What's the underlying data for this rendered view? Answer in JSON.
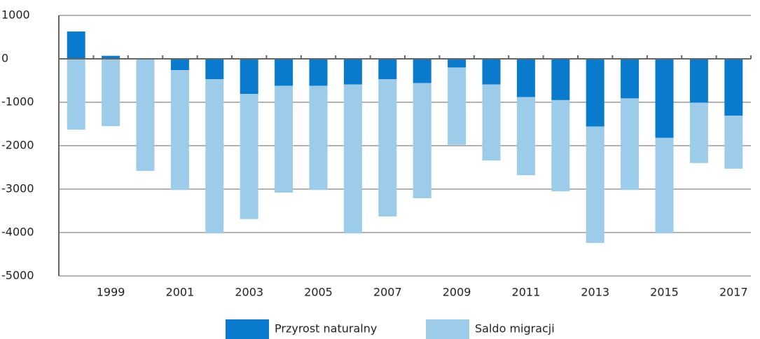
{
  "chart_data": {
    "type": "stacked_bar",
    "categories": [
      null,
      "1999",
      null,
      "2001",
      null,
      "2003",
      null,
      "2005",
      null,
      "2007",
      null,
      "2009",
      null,
      "2011",
      null,
      "2013",
      null,
      "2015",
      null,
      "2017"
    ],
    "series": [
      {
        "name": "Przyrost naturalny",
        "color": "#0a7acc",
        "values": [
          630,
          70,
          0,
          -260,
          -470,
          -810,
          -620,
          -620,
          -590,
          -470,
          -560,
          -200,
          -590,
          -880,
          -950,
          -1560,
          -910,
          -1820,
          -1010,
          -1310
        ]
      },
      {
        "name": "Saldo migracji",
        "color": "#9dcbea",
        "values": [
          -1630,
          -1550,
          -2580,
          -2760,
          -3550,
          -2880,
          -2460,
          -2400,
          -3430,
          -3160,
          -2650,
          -1780,
          -1750,
          -1800,
          -2100,
          -2680,
          -2110,
          -2200,
          -1390,
          -1220
        ]
      }
    ],
    "ylim": [
      -5000,
      1000
    ],
    "yticks": [
      -5000,
      -4000,
      -3000,
      -2000,
      -1000,
      0,
      1000
    ],
    "grid": true,
    "legend": "bottom"
  }
}
